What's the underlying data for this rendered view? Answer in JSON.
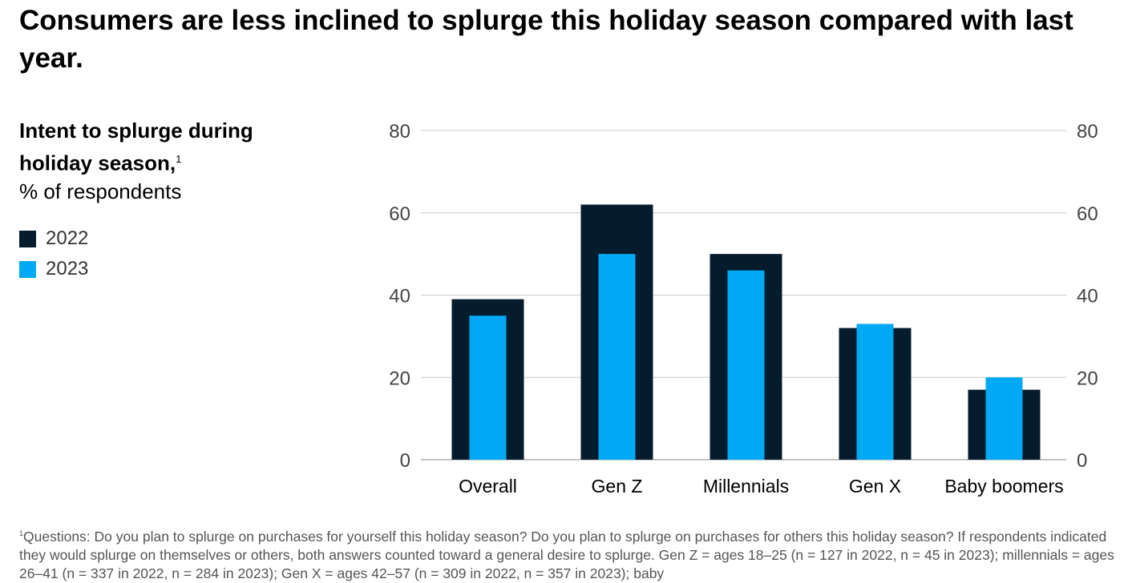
{
  "title": "Consumers are less inclined to splurge this holiday season compared with last year.",
  "subtitle_bold": "Intent to splurge during holiday season,",
  "subtitle_sup": "1",
  "subtitle_unit": "% of respondents",
  "footnote_marker": "1",
  "footnote": "Questions: Do you plan to splurge on purchases for yourself this holiday season? Do you plan to splurge on purchases for others this holiday season? If respondents indicated they would splurge on themselves or others, both answers counted toward a general desire to splurge. Gen Z = ages 18–25 (n = 127 in 2022, n = 45 in 2023); millennials = ages 26–41 (n = 337 in 2022, n = 284 in 2023); Gen X = ages 42–57 (n = 309 in 2022, n = 357 in 2023); baby",
  "chart_data": {
    "type": "bar",
    "title": "Intent to splurge during holiday season",
    "ylabel": "% of respondents",
    "categories": [
      "Overall",
      "Gen Z",
      "Millennials",
      "Gen X",
      "Baby boomers"
    ],
    "series": [
      {
        "name": "2022",
        "color": "#051c2c",
        "values": [
          39,
          62,
          50,
          32,
          17
        ]
      },
      {
        "name": "2023",
        "color": "#00a9f4",
        "values": [
          35,
          50,
          46,
          33,
          20
        ]
      }
    ],
    "ylim": [
      0,
      80
    ],
    "yticks": [
      "0",
      "20",
      "40",
      "60",
      "80"
    ],
    "grid": true,
    "legend": "left",
    "layout": "overlapping bars"
  }
}
